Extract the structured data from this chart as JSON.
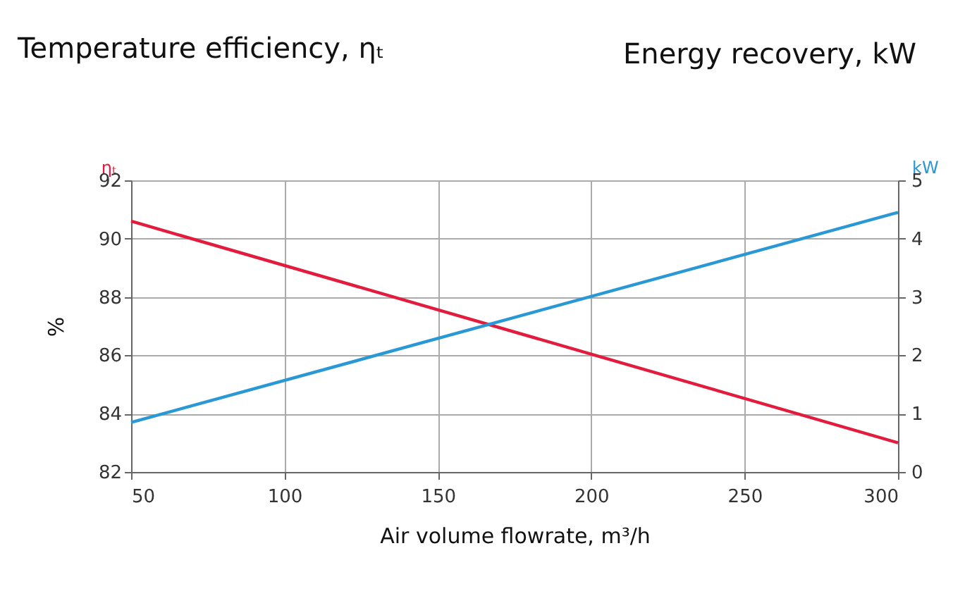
{
  "chart_data": {
    "type": "line",
    "title": "Temperature efficiency, ηₜ",
    "annotations": [
      "Energy recovery, kW"
    ],
    "xlabel": "Air volume flowrate, m³/h",
    "ylabel": "%",
    "x": [
      50,
      300
    ],
    "xlim": [
      50,
      300
    ],
    "xticks": [
      50,
      100,
      150,
      200,
      250,
      300
    ],
    "ylim": [
      82,
      92
    ],
    "yticks": [
      82,
      84,
      86,
      88,
      90,
      92
    ],
    "y2lim": [
      0,
      5
    ],
    "y2ticks": [
      0,
      1,
      2,
      3,
      4,
      5
    ],
    "grid": true,
    "series": [
      {
        "name": "ηₜ",
        "color": "#e31b3c",
        "values": [
          90.6,
          83.0
        ]
      },
      {
        "name": "kW",
        "color": "#2a98d4",
        "axis": "y2",
        "values": [
          0.85,
          4.45
        ]
      }
    ]
  }
}
